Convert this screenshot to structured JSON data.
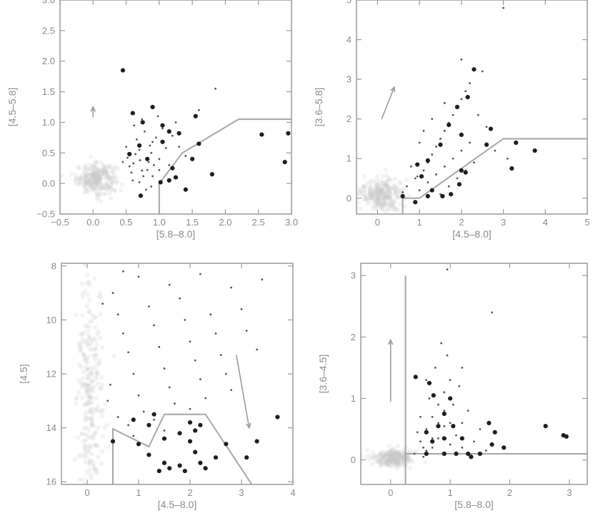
{
  "chart_data": [
    {
      "type": "scatter",
      "xlabel": "[5.8–8.0]",
      "ylabel": "[4.5–5.8]",
      "xlim": [
        -0.5,
        3.0
      ],
      "ylim": [
        -0.5,
        3.0
      ],
      "xticks": [
        "−0.5",
        "0.0",
        "0.5",
        "1.0",
        "1.5",
        "2.0",
        "2.5",
        "3.0"
      ],
      "xtick_values": [
        -0.5,
        0.0,
        0.5,
        1.0,
        1.5,
        2.0,
        2.5,
        3.0
      ],
      "yticks": [
        "−0.5",
        "0.0",
        "0.5",
        "1.0",
        "1.5",
        "2.0",
        "2.5",
        "3.0"
      ],
      "ytick_values": [
        -0.5,
        0.0,
        0.5,
        1.0,
        1.5,
        2.0,
        2.5,
        3.0
      ],
      "y_inverted": false,
      "cloud_center": [
        0.05,
        0.08
      ],
      "cloud_spread": [
        0.15,
        0.12
      ],
      "small_points": [
        [
          0.52,
          0.42
        ],
        [
          0.61,
          0.33
        ],
        [
          0.7,
          0.55
        ],
        [
          0.74,
          0.21
        ],
        [
          0.8,
          0.4
        ],
        [
          0.86,
          0.62
        ],
        [
          0.92,
          0.3
        ],
        [
          0.58,
          0.18
        ],
        [
          0.66,
          0.72
        ],
        [
          0.78,
          0.85
        ],
        [
          0.88,
          0.5
        ],
        [
          0.95,
          0.75
        ],
        [
          1.05,
          0.9
        ],
        [
          1.1,
          0.58
        ],
        [
          1.2,
          0.78
        ],
        [
          0.7,
          0.02
        ],
        [
          0.8,
          -0.1
        ],
        [
          0.9,
          0.12
        ],
        [
          0.5,
          0.6
        ],
        [
          0.62,
          0.95
        ],
        [
          0.74,
          1.05
        ],
        [
          0.84,
          0.35
        ],
        [
          1.0,
          0.4
        ],
        [
          1.15,
          0.3
        ],
        [
          0.55,
          0.28
        ],
        [
          0.64,
          0.48
        ],
        [
          0.71,
          0.38
        ],
        [
          0.82,
          0.22
        ],
        [
          0.9,
          0.68
        ],
        [
          1.0,
          0.22
        ],
        [
          1.3,
          0.6
        ],
        [
          1.4,
          0.45
        ],
        [
          0.6,
          0.05
        ],
        [
          0.76,
          0.12
        ],
        [
          0.88,
          -0.05
        ],
        [
          1.25,
          1.0
        ],
        [
          0.45,
          0.35
        ],
        [
          0.98,
          1.1
        ],
        [
          1.6,
          1.2
        ],
        [
          1.85,
          1.55
        ]
      ],
      "big_points": [
        [
          0.45,
          1.85
        ],
        [
          0.6,
          1.15
        ],
        [
          0.75,
          1.0
        ],
        [
          0.9,
          1.25
        ],
        [
          1.05,
          0.95
        ],
        [
          1.15,
          0.85
        ],
        [
          0.55,
          0.48
        ],
        [
          0.7,
          0.62
        ],
        [
          0.82,
          0.4
        ],
        [
          1.2,
          0.25
        ],
        [
          1.15,
          0.05
        ],
        [
          1.25,
          0.1
        ],
        [
          1.4,
          -0.1
        ],
        [
          1.5,
          0.4
        ],
        [
          1.6,
          0.65
        ],
        [
          1.55,
          1.1
        ],
        [
          1.8,
          0.15
        ],
        [
          2.55,
          0.8
        ],
        [
          2.9,
          0.35
        ],
        [
          2.95,
          0.82
        ],
        [
          1.02,
          0.02
        ],
        [
          0.72,
          -0.2
        ],
        [
          1.05,
          0.68
        ],
        [
          1.3,
          0.82
        ]
      ],
      "boundary": [
        [
          1.0,
          -0.5
        ],
        [
          1.0,
          0.0
        ],
        [
          1.35,
          0.5
        ],
        [
          2.2,
          1.05
        ],
        [
          3.0,
          1.05
        ]
      ],
      "arrows": [
        [
          [
            0.0,
            1.08
          ],
          [
            0.0,
            1.25
          ]
        ]
      ]
    },
    {
      "type": "scatter",
      "xlabel": "[4.5–8.0]",
      "ylabel": "[3.6–5.8]",
      "xlim": [
        -0.5,
        5.0
      ],
      "ylim": [
        -0.4,
        5.0
      ],
      "xticks": [
        "0",
        "1",
        "2",
        "3",
        "4",
        "5"
      ],
      "xtick_values": [
        0,
        1,
        2,
        3,
        4,
        5
      ],
      "yticks": [
        "0",
        "1",
        "2",
        "3",
        "4",
        "5"
      ],
      "ytick_values": [
        0,
        1,
        2,
        3,
        4,
        5
      ],
      "y_inverted": false,
      "cloud_center": [
        0.1,
        0.1
      ],
      "cloud_spread": [
        0.25,
        0.2
      ],
      "small_points": [
        [
          0.9,
          0.5
        ],
        [
          1.1,
          0.7
        ],
        [
          1.2,
          0.9
        ],
        [
          1.3,
          1.1
        ],
        [
          1.4,
          1.3
        ],
        [
          1.5,
          1.5
        ],
        [
          1.6,
          1.7
        ],
        [
          1.7,
          1.9
        ],
        [
          1.8,
          2.1
        ],
        [
          1.9,
          2.3
        ],
        [
          2.0,
          2.5
        ],
        [
          2.1,
          2.7
        ],
        [
          2.2,
          2.9
        ],
        [
          1.0,
          0.2
        ],
        [
          1.2,
          0.4
        ],
        [
          1.4,
          0.6
        ],
        [
          1.6,
          0.8
        ],
        [
          1.8,
          1.0
        ],
        [
          2.0,
          1.2
        ],
        [
          2.2,
          1.4
        ],
        [
          1.5,
          0.1
        ],
        [
          1.7,
          0.3
        ],
        [
          1.9,
          0.5
        ],
        [
          2.1,
          0.7
        ],
        [
          2.3,
          0.9
        ],
        [
          1.3,
          2.0
        ],
        [
          1.6,
          2.4
        ],
        [
          2.4,
          2.1
        ],
        [
          2.6,
          1.8
        ],
        [
          0.7,
          0.3
        ],
        [
          0.8,
          0.8
        ],
        [
          1.0,
          1.4
        ],
        [
          2.8,
          1.2
        ],
        [
          3.1,
          1.0
        ],
        [
          1.1,
          1.7
        ],
        [
          2.5,
          3.2
        ],
        [
          0.6,
          0.15
        ],
        [
          0.95,
          0.55
        ],
        [
          2.0,
          3.5
        ],
        [
          3.0,
          4.8
        ]
      ],
      "big_points": [
        [
          2.3,
          3.25
        ],
        [
          2.15,
          2.55
        ],
        [
          1.9,
          2.3
        ],
        [
          1.7,
          1.85
        ],
        [
          2.0,
          1.6
        ],
        [
          1.5,
          1.35
        ],
        [
          1.2,
          0.95
        ],
        [
          0.95,
          0.85
        ],
        [
          1.05,
          0.55
        ],
        [
          1.3,
          0.2
        ],
        [
          1.2,
          0.05
        ],
        [
          1.75,
          0.1
        ],
        [
          2.1,
          0.65
        ],
        [
          1.95,
          0.35
        ],
        [
          2.7,
          1.75
        ],
        [
          3.3,
          1.4
        ],
        [
          3.75,
          1.2
        ],
        [
          3.2,
          0.75
        ],
        [
          1.55,
          0.05
        ],
        [
          2.6,
          1.35
        ],
        [
          2.0,
          0.7
        ],
        [
          0.6,
          0.05
        ],
        [
          0.9,
          -0.1
        ]
      ],
      "boundary": [
        [
          0.6,
          -0.4
        ],
        [
          0.6,
          0.0
        ],
        [
          1.0,
          0.0
        ],
        [
          3.0,
          1.5
        ],
        [
          5.0,
          1.5
        ]
      ],
      "arrows": [
        [
          [
            0.1,
            2.0
          ],
          [
            0.4,
            2.8
          ]
        ]
      ]
    },
    {
      "type": "scatter",
      "xlabel": "[4.5–8.0]",
      "ylabel": "[4.5]",
      "xlim": [
        -0.5,
        4.0
      ],
      "ylim": [
        16.1,
        7.9
      ],
      "xticks": [
        "0",
        "1",
        "2",
        "3",
        "4"
      ],
      "xtick_values": [
        0,
        1,
        2,
        3,
        4
      ],
      "yticks": [
        "8",
        "10",
        "12",
        "14",
        "16"
      ],
      "ytick_values": [
        8,
        10,
        12,
        14,
        16
      ],
      "y_inverted": true,
      "cloud_center": [
        0.05,
        12.5
      ],
      "cloud_spread": [
        0.12,
        2.2
      ],
      "small_points": [
        [
          0.5,
          9.0
        ],
        [
          0.6,
          9.8
        ],
        [
          0.7,
          10.5
        ],
        [
          0.8,
          11.2
        ],
        [
          0.9,
          12.0
        ],
        [
          1.0,
          12.8
        ],
        [
          1.1,
          13.4
        ],
        [
          1.2,
          9.5
        ],
        [
          1.3,
          10.2
        ],
        [
          1.4,
          11.0
        ],
        [
          1.5,
          11.8
        ],
        [
          1.6,
          12.5
        ],
        [
          1.7,
          13.1
        ],
        [
          1.8,
          9.2
        ],
        [
          1.9,
          10.0
        ],
        [
          2.0,
          10.8
        ],
        [
          2.1,
          11.5
        ],
        [
          2.2,
          12.2
        ],
        [
          2.3,
          12.9
        ],
        [
          2.4,
          9.8
        ],
        [
          2.5,
          10.5
        ],
        [
          2.6,
          11.3
        ],
        [
          2.7,
          12.0
        ],
        [
          2.8,
          8.8
        ],
        [
          3.0,
          9.6
        ],
        [
          3.1,
          10.4
        ],
        [
          3.3,
          11.1
        ],
        [
          0.4,
          13.0
        ],
        [
          0.6,
          13.6
        ],
        [
          0.8,
          13.9
        ],
        [
          1.3,
          13.7
        ],
        [
          2.0,
          13.3
        ],
        [
          2.8,
          12.6
        ],
        [
          3.4,
          8.5
        ],
        [
          1.0,
          8.4
        ],
        [
          1.6,
          8.7
        ],
        [
          2.2,
          8.3
        ],
        [
          0.3,
          9.4
        ],
        [
          0.9,
          14.3
        ],
        [
          1.5,
          14.1
        ],
        [
          0.45,
          12.4
        ],
        [
          0.7,
          8.2
        ]
      ],
      "big_points": [
        [
          0.5,
          14.5
        ],
        [
          0.9,
          13.7
        ],
        [
          1.2,
          13.9
        ],
        [
          1.3,
          13.5
        ],
        [
          1.0,
          14.6
        ],
        [
          1.2,
          15.0
        ],
        [
          1.5,
          14.4
        ],
        [
          1.5,
          15.3
        ],
        [
          1.6,
          15.5
        ],
        [
          1.8,
          15.4
        ],
        [
          1.9,
          15.6
        ],
        [
          2.0,
          14.5
        ],
        [
          2.1,
          14.9
        ],
        [
          2.2,
          15.3
        ],
        [
          2.3,
          15.5
        ],
        [
          2.0,
          13.8
        ],
        [
          2.1,
          14.1
        ],
        [
          2.5,
          15.1
        ],
        [
          2.7,
          14.6
        ],
        [
          1.4,
          15.6
        ],
        [
          3.1,
          15.1
        ],
        [
          3.3,
          14.5
        ],
        [
          3.7,
          13.6
        ],
        [
          1.8,
          14.2
        ],
        [
          2.2,
          13.9
        ]
      ],
      "boundary": [
        [
          0.5,
          16.1
        ],
        [
          0.5,
          14.04
        ],
        [
          1.2,
          14.7
        ],
        [
          1.5,
          13.5
        ],
        [
          2.3,
          13.5
        ],
        [
          3.2,
          16.1
        ]
      ],
      "arrows": [
        [
          [
            2.9,
            11.3
          ],
          [
            3.15,
            14.0
          ]
        ]
      ]
    },
    {
      "type": "scatter",
      "xlabel": "[5.8–8.0]",
      "ylabel": "[3.6–4.5]",
      "xlim": [
        -0.5,
        3.3
      ],
      "ylim": [
        -0.4,
        3.2
      ],
      "xticks": [
        "0",
        "1",
        "2",
        "3"
      ],
      "xtick_values": [
        0,
        1,
        2,
        3
      ],
      "yticks": [
        "0",
        "1",
        "2",
        "3"
      ],
      "ytick_values": [
        0,
        1,
        2,
        3
      ],
      "y_inverted": false,
      "cloud_center": [
        0.05,
        0.03
      ],
      "cloud_spread": [
        0.15,
        0.07
      ],
      "small_points": [
        [
          0.5,
          0.3
        ],
        [
          0.6,
          0.5
        ],
        [
          0.7,
          0.7
        ],
        [
          0.8,
          0.9
        ],
        [
          0.9,
          1.1
        ],
        [
          1.0,
          1.3
        ],
        [
          1.1,
          0.4
        ],
        [
          1.2,
          0.6
        ],
        [
          1.3,
          0.8
        ],
        [
          0.6,
          0.15
        ],
        [
          0.7,
          0.2
        ],
        [
          0.8,
          0.35
        ],
        [
          0.9,
          0.55
        ],
        [
          1.0,
          0.25
        ],
        [
          1.1,
          0.1
        ],
        [
          1.2,
          0.2
        ],
        [
          0.55,
          0.05
        ],
        [
          0.65,
          1.0
        ],
        [
          0.75,
          1.5
        ],
        [
          0.85,
          1.9
        ],
        [
          0.95,
          1.7
        ],
        [
          1.05,
          0.9
        ],
        [
          1.15,
          1.2
        ],
        [
          1.4,
          0.3
        ],
        [
          1.5,
          0.5
        ],
        [
          1.6,
          0.15
        ],
        [
          0.4,
          0.1
        ],
        [
          0.45,
          0.45
        ],
        [
          0.7,
          0.35
        ],
        [
          0.8,
          0.6
        ],
        [
          0.9,
          0.8
        ],
        [
          1.0,
          0.6
        ],
        [
          1.2,
          1.5
        ],
        [
          0.95,
          3.1
        ],
        [
          1.7,
          2.4
        ],
        [
          0.6,
          1.3
        ],
        [
          1.3,
          0.1
        ],
        [
          0.5,
          0.7
        ],
        [
          0.55,
          0.2
        ]
      ],
      "big_points": [
        [
          0.42,
          1.35
        ],
        [
          0.65,
          1.25
        ],
        [
          0.72,
          1.05
        ],
        [
          1.0,
          1.0
        ],
        [
          0.9,
          0.75
        ],
        [
          0.8,
          0.55
        ],
        [
          0.6,
          0.45
        ],
        [
          0.7,
          0.3
        ],
        [
          0.9,
          0.35
        ],
        [
          1.05,
          0.55
        ],
        [
          1.2,
          0.35
        ],
        [
          1.3,
          0.1
        ],
        [
          1.5,
          0.1
        ],
        [
          1.65,
          0.6
        ],
        [
          1.75,
          0.45
        ],
        [
          1.7,
          0.25
        ],
        [
          1.9,
          0.2
        ],
        [
          2.6,
          0.55
        ],
        [
          2.9,
          0.4
        ],
        [
          2.95,
          0.38
        ],
        [
          1.1,
          0.1
        ],
        [
          0.9,
          0.1
        ],
        [
          0.6,
          0.1
        ],
        [
          1.35,
          0.05
        ]
      ],
      "boundary_lines": [
        [
          [
            0.25,
            -0.4
          ],
          [
            0.25,
            3.0
          ]
        ],
        [
          [
            0.25,
            0.1
          ],
          [
            3.3,
            0.1
          ]
        ]
      ],
      "arrows": [
        [
          [
            0.0,
            0.95
          ],
          [
            0.0,
            1.95
          ]
        ]
      ]
    }
  ]
}
